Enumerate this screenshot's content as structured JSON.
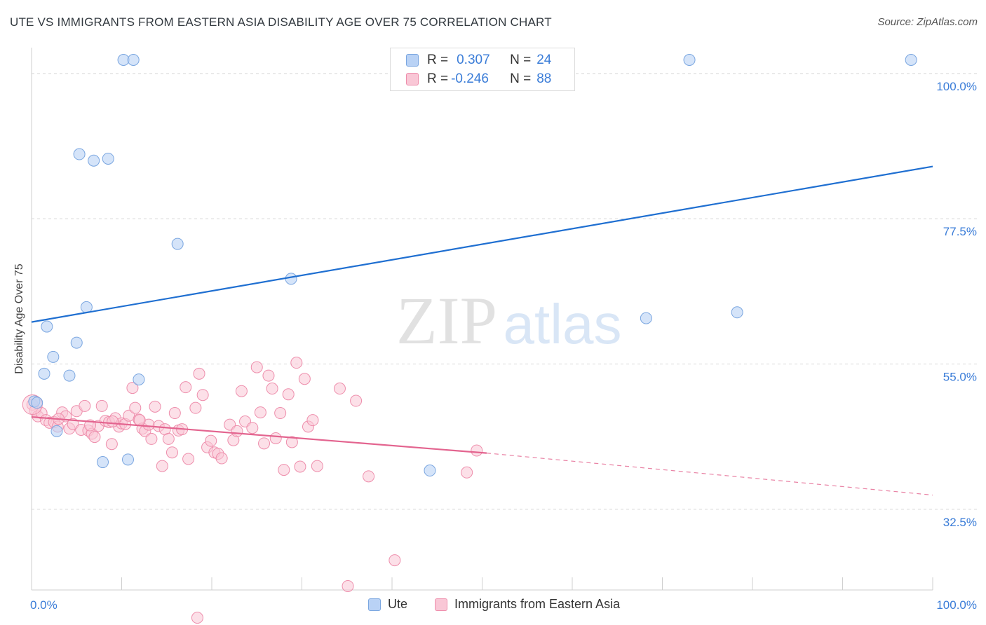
{
  "header": {
    "title": "UTE VS IMMIGRANTS FROM EASTERN ASIA DISABILITY AGE OVER 75 CORRELATION CHART",
    "source": "Source: ZipAtlas.com"
  },
  "watermark": {
    "zip": "ZIP",
    "atlas": "atlas"
  },
  "legend_box": {
    "rows": [
      {
        "r_label": "R =",
        "r_value": "0.307",
        "n_label": "N =",
        "n_value": "24"
      },
      {
        "r_label": "R =",
        "r_value": "-0.246",
        "n_label": "N =",
        "n_value": "88"
      }
    ]
  },
  "legend_bottom": {
    "items": [
      "Ute",
      "Immigrants from Eastern Asia"
    ]
  },
  "colors": {
    "ute_fill": "#b9d2f5",
    "ute_stroke": "#7aa6e0",
    "ute_line": "#1f6fd1",
    "imm_fill": "#f9c7d6",
    "imm_stroke": "#ee8eac",
    "imm_line": "#e3648f",
    "tick": "#3b7dd8",
    "grid": "#d8d8d8"
  },
  "chart_data": {
    "type": "scatter",
    "title": "UTE VS IMMIGRANTS FROM EASTERN ASIA DISABILITY AGE OVER 75 CORRELATION CHART",
    "xlabel": "",
    "ylabel": "Disability Age Over 75",
    "xlim": [
      0,
      100
    ],
    "ylim": [
      20,
      104
    ],
    "x_ticks": [
      "0.0%",
      "100.0%"
    ],
    "y_ticks": [
      {
        "value": 32.5,
        "label": "32.5%"
      },
      {
        "value": 55.0,
        "label": "55.0%"
      },
      {
        "value": 77.5,
        "label": "77.5%"
      },
      {
        "value": 100.0,
        "label": "100.0%"
      }
    ],
    "grid": true,
    "legend_position": "top-center",
    "series": [
      {
        "name": "Ute",
        "R": 0.307,
        "N": 24,
        "trend": {
          "x": [
            0,
            100
          ],
          "y": [
            61.5,
            85.6
          ]
        },
        "points": [
          [
            10.2,
            102.1
          ],
          [
            11.3,
            102.1
          ],
          [
            97.6,
            102.1
          ],
          [
            5.3,
            87.5
          ],
          [
            6.9,
            86.5
          ],
          [
            8.5,
            86.8
          ],
          [
            16.2,
            73.6
          ],
          [
            28.8,
            68.2
          ],
          [
            6.1,
            63.8
          ],
          [
            1.7,
            60.8
          ],
          [
            5.0,
            58.3
          ],
          [
            2.4,
            56.1
          ],
          [
            1.4,
            53.5
          ],
          [
            4.2,
            53.2
          ],
          [
            11.9,
            52.6
          ],
          [
            0.3,
            49.2
          ],
          [
            0.6,
            49.0
          ],
          [
            2.8,
            44.6
          ],
          [
            7.9,
            39.8
          ],
          [
            10.7,
            40.2
          ],
          [
            44.2,
            38.5
          ],
          [
            68.2,
            62.1
          ],
          [
            78.3,
            63.0
          ],
          [
            73.0,
            102.1
          ]
        ]
      },
      {
        "name": "Immigrants from Eastern Asia",
        "R": -0.246,
        "N": 88,
        "trend": {
          "x": [
            0,
            50.5
          ],
          "y": [
            46.8,
            41.2
          ]
        },
        "trend_dashed": {
          "x": [
            50.5,
            100
          ],
          "y": [
            41.2,
            34.7
          ]
        },
        "points": [
          [
            0.1,
            48.7
          ],
          [
            0.4,
            47.8
          ],
          [
            0.7,
            46.9
          ],
          [
            1.1,
            47.4
          ],
          [
            1.6,
            46.3
          ],
          [
            2.0,
            45.9
          ],
          [
            2.5,
            46.0
          ],
          [
            2.9,
            45.3
          ],
          [
            3.4,
            47.5
          ],
          [
            3.8,
            46.9
          ],
          [
            4.2,
            45.0
          ],
          [
            4.6,
            45.7
          ],
          [
            5.0,
            47.7
          ],
          [
            5.5,
            44.8
          ],
          [
            5.9,
            48.5
          ],
          [
            6.3,
            44.7
          ],
          [
            6.7,
            44.2
          ],
          [
            7.0,
            43.7
          ],
          [
            7.4,
            45.4
          ],
          [
            7.8,
            48.5
          ],
          [
            8.2,
            46.2
          ],
          [
            8.6,
            46.0
          ],
          [
            8.9,
            42.6
          ],
          [
            9.3,
            46.6
          ],
          [
            9.7,
            45.3
          ],
          [
            10.0,
            45.8
          ],
          [
            10.4,
            45.7
          ],
          [
            10.8,
            47.0
          ],
          [
            11.2,
            51.3
          ],
          [
            11.5,
            48.2
          ],
          [
            11.9,
            46.4
          ],
          [
            12.3,
            45.0
          ],
          [
            12.6,
            44.6
          ],
          [
            13.0,
            45.6
          ],
          [
            13.3,
            43.4
          ],
          [
            13.7,
            48.4
          ],
          [
            14.1,
            45.4
          ],
          [
            14.5,
            39.2
          ],
          [
            14.8,
            44.9
          ],
          [
            15.2,
            43.4
          ],
          [
            15.6,
            41.3
          ],
          [
            15.9,
            47.4
          ],
          [
            16.3,
            44.7
          ],
          [
            16.7,
            44.9
          ],
          [
            17.1,
            51.4
          ],
          [
            17.4,
            40.3
          ],
          [
            18.2,
            48.2
          ],
          [
            18.6,
            53.5
          ],
          [
            19.0,
            50.2
          ],
          [
            19.5,
            42.1
          ],
          [
            19.9,
            43.1
          ],
          [
            20.3,
            41.3
          ],
          [
            20.7,
            41.1
          ],
          [
            21.1,
            40.4
          ],
          [
            22.0,
            45.6
          ],
          [
            22.4,
            43.2
          ],
          [
            22.8,
            44.6
          ],
          [
            23.3,
            50.8
          ],
          [
            23.7,
            46.1
          ],
          [
            24.5,
            45.1
          ],
          [
            25.0,
            54.5
          ],
          [
            25.4,
            47.5
          ],
          [
            25.8,
            42.7
          ],
          [
            26.3,
            53.2
          ],
          [
            26.7,
            51.2
          ],
          [
            27.1,
            43.5
          ],
          [
            27.6,
            47.4
          ],
          [
            28.0,
            38.6
          ],
          [
            28.5,
            50.3
          ],
          [
            28.9,
            42.9
          ],
          [
            29.4,
            55.2
          ],
          [
            29.8,
            39.1
          ],
          [
            30.3,
            52.7
          ],
          [
            30.7,
            45.3
          ],
          [
            31.2,
            46.3
          ],
          [
            31.7,
            39.2
          ],
          [
            34.2,
            51.2
          ],
          [
            35.1,
            20.6
          ],
          [
            36.0,
            49.3
          ],
          [
            37.4,
            37.6
          ],
          [
            40.3,
            24.6
          ],
          [
            48.3,
            38.2
          ],
          [
            49.4,
            41.6
          ],
          [
            18.4,
            15.7
          ],
          [
            3.0,
            46.5
          ],
          [
            6.5,
            45.5
          ],
          [
            9.0,
            46.1
          ],
          [
            12.0,
            46.3
          ]
        ]
      }
    ]
  }
}
